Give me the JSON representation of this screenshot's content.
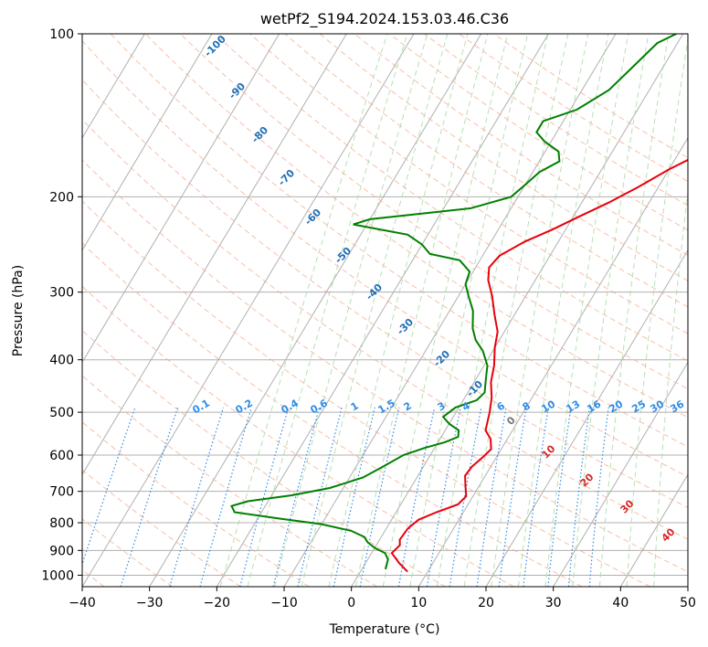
{
  "chart_data": {
    "type": "line",
    "title": "wetPf2_S194.2024.153.03.46.C36",
    "xlabel": "Temperature (°C)",
    "ylabel": "Pressure (hPa)",
    "xlim": [
      -40,
      50
    ],
    "ylim": [
      1050,
      100
    ],
    "y_scale": "log",
    "grid": true,
    "x_ticks": [
      "−40",
      "−30",
      "−20",
      "−10",
      "0",
      "10",
      "20",
      "30",
      "40",
      "50"
    ],
    "y_ticks": [
      "100",
      "200",
      "300",
      "400",
      "500",
      "600",
      "700",
      "800",
      "900",
      "1000"
    ],
    "series": [
      {
        "color": "#e8000b",
        "points": [
          [
            7.0,
            985
          ],
          [
            5.0,
            950
          ],
          [
            3.0,
            910
          ],
          [
            3.5,
            880
          ],
          [
            3.0,
            860
          ],
          [
            3.2,
            820
          ],
          [
            4.0,
            790
          ],
          [
            6.0,
            765
          ],
          [
            8.5,
            740
          ],
          [
            9.0,
            715
          ],
          [
            8.0,
            685
          ],
          [
            7.0,
            655
          ],
          [
            7.2,
            630
          ],
          [
            8.0,
            605
          ],
          [
            8.5,
            585
          ],
          [
            7.5,
            560
          ],
          [
            6.0,
            540
          ],
          [
            5.5,
            520
          ],
          [
            5.0,
            500
          ],
          [
            4.0,
            470
          ],
          [
            2.5,
            440
          ],
          [
            1.5,
            410
          ],
          [
            0.0,
            380
          ],
          [
            -1.0,
            355
          ],
          [
            -3.0,
            330
          ],
          [
            -5.0,
            305
          ],
          [
            -7.0,
            285
          ],
          [
            -8.0,
            270
          ],
          [
            -7.5,
            257
          ],
          [
            -5.0,
            242
          ],
          [
            -2.0,
            230
          ],
          [
            1.0,
            217
          ],
          [
            4.0,
            205
          ],
          [
            7.0,
            192
          ],
          [
            10.0,
            178
          ],
          [
            14.0,
            164
          ],
          [
            18.0,
            150
          ],
          [
            20.0,
            142
          ],
          [
            21.0,
            133
          ],
          [
            21.0,
            125
          ],
          [
            22.0,
            115
          ],
          [
            24.0,
            106
          ],
          [
            25.0,
            100
          ]
        ]
      },
      {
        "color": "#008000",
        "points": [
          [
            3.5,
            975
          ],
          [
            3.0,
            935
          ],
          [
            2.0,
            910
          ],
          [
            0.0,
            890
          ],
          [
            -1.5,
            870
          ],
          [
            -2.5,
            850
          ],
          [
            -5.0,
            828
          ],
          [
            -10.0,
            805
          ],
          [
            -17.0,
            785
          ],
          [
            -24.0,
            765
          ],
          [
            -25.0,
            745
          ],
          [
            -23.0,
            730
          ],
          [
            -17.0,
            712
          ],
          [
            -12.0,
            690
          ],
          [
            -8.0,
            660
          ],
          [
            -6.0,
            630
          ],
          [
            -4.0,
            600
          ],
          [
            -1.5,
            582
          ],
          [
            1.0,
            568
          ],
          [
            2.5,
            555
          ],
          [
            2.0,
            540
          ],
          [
            0.0,
            525
          ],
          [
            -1.5,
            510
          ],
          [
            -0.5,
            490
          ],
          [
            2.0,
            475
          ],
          [
            2.5,
            460
          ],
          [
            1.5,
            435
          ],
          [
            0.5,
            410
          ],
          [
            -1.5,
            385
          ],
          [
            -3.5,
            368
          ],
          [
            -5.0,
            350
          ],
          [
            -6.5,
            325
          ],
          [
            -8.5,
            305
          ],
          [
            -10.0,
            290
          ],
          [
            -10.5,
            275
          ],
          [
            -13.0,
            262
          ],
          [
            -18.0,
            255
          ],
          [
            -20.0,
            245
          ],
          [
            -23.0,
            235
          ],
          [
            -32.0,
            225
          ],
          [
            -30.0,
            220
          ],
          [
            -16.0,
            210
          ],
          [
            -11.0,
            200
          ],
          [
            -10.0,
            190
          ],
          [
            -9.0,
            180
          ],
          [
            -7.0,
            172
          ],
          [
            -8.0,
            165
          ],
          [
            -11.0,
            158
          ],
          [
            -13.0,
            152
          ],
          [
            -13.0,
            145
          ],
          [
            -9.0,
            138
          ],
          [
            -6.0,
            127
          ],
          [
            -4.5,
            115
          ],
          [
            -3.0,
            104
          ],
          [
            -1.0,
            100
          ]
        ]
      }
    ],
    "isotherm_labels": [],
    "dry_adiabat_labels": [
      "-100",
      "-90",
      "-80",
      "-70",
      "-60",
      "-50",
      "-40",
      "-30",
      "-20",
      "-10",
      "0",
      "10",
      "20",
      "30",
      "40"
    ],
    "mixing_ratio_labels": [
      "0.1",
      "0.2",
      "0.4",
      "0.6",
      "1",
      "1.5",
      "2",
      "3",
      "4",
      "6",
      "8",
      "10",
      "13",
      "16",
      "20",
      "25",
      "30",
      "36"
    ]
  }
}
